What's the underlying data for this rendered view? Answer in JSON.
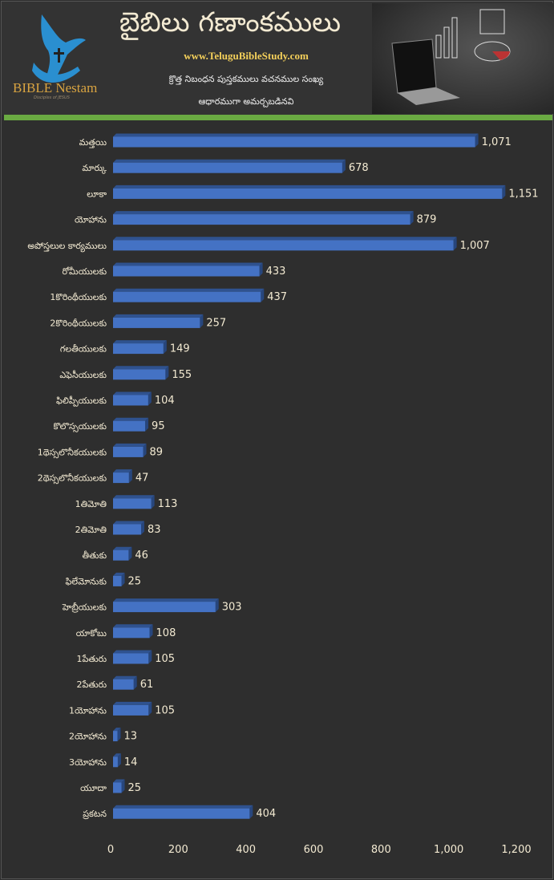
{
  "header": {
    "title": "బైబిలు గణాంకములు",
    "url": "www.TeluguBibleStudy.com",
    "subtitle_line1": "క్రొత్త నిబంధన పుస్తకములు వచనముల సంఖ్య",
    "subtitle_line2": "ఆధారముగా అమర్చబడినవి",
    "brand": "BIBLE Nestam",
    "brand_tagline": "Disciples of JESUS"
  },
  "colors": {
    "bar": "#4472c4",
    "bar_top": "#2f528f",
    "green": "#6aaa42",
    "text": "#f3ead2"
  },
  "chart_data": {
    "type": "bar",
    "orientation": "horizontal",
    "title": "బైబిలు గణాంకములు",
    "categories": [
      "మత్తయి",
      "మార్కు",
      "లూకా",
      "యోహాను",
      "అపోస్తలుల కార్యములు",
      "రోమీయులకు",
      "1కొరింథీయులకు",
      "2కొరింథీయులకు",
      "గలతీయులకు",
      "ఎఫెసీయులకు",
      "ఫిలిప్పీయులకు",
      "కొలొస్సయులకు",
      "1థెస్సలొనీకయులకు",
      "2థెస్సలొనీకయులకు",
      "1తిమోతి",
      "2తిమోతి",
      "తీతుకు",
      "ఫిలేమోనుకు",
      "హెబ్రీయులకు",
      "యాకోబు",
      "1పేతురు",
      "2పేతురు",
      "1యోహాను",
      "2యోహాను",
      "3యోహాను",
      "యూదా",
      "ప్రకటన"
    ],
    "values": [
      1071,
      678,
      1151,
      879,
      1007,
      433,
      437,
      257,
      149,
      155,
      104,
      95,
      89,
      47,
      113,
      83,
      46,
      25,
      303,
      108,
      105,
      61,
      105,
      13,
      14,
      25,
      404
    ],
    "value_labels": [
      "1,071",
      "678",
      "1,151",
      "879",
      "1,007",
      "433",
      "437",
      "257",
      "149",
      "155",
      "104",
      "95",
      "89",
      "47",
      "113",
      "83",
      "46",
      "25",
      "303",
      "108",
      "105",
      "61",
      "105",
      "13",
      "14",
      "25",
      "404"
    ],
    "xticks": [
      "0",
      "200",
      "400",
      "600",
      "800",
      "1,000",
      "1,200"
    ],
    "xlim": [
      0,
      1200
    ],
    "grid": false,
    "legend": "none"
  }
}
